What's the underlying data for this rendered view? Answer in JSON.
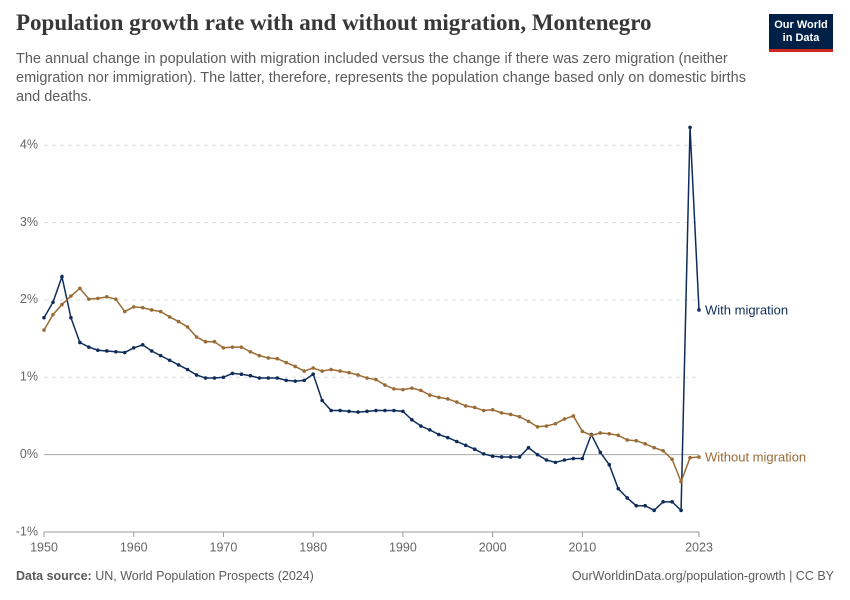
{
  "header": {
    "title": "Population growth rate with and without migration, Montenegro",
    "subtitle": "The annual change in population with migration included versus the change if there was zero migration (neither emigration nor immigration). The latter, therefore, represents the population change based only on domestic births and deaths.",
    "logo": [
      "Our World",
      "in Data"
    ]
  },
  "footer": {
    "source_label": "Data source:",
    "source": "UN, World Population Prospects (2024)",
    "url": "OurWorldinData.org/population-growth | CC BY"
  },
  "chart_data": {
    "type": "line",
    "x": [
      1950,
      1951,
      1952,
      1953,
      1954,
      1955,
      1956,
      1957,
      1958,
      1959,
      1960,
      1961,
      1962,
      1963,
      1964,
      1965,
      1966,
      1967,
      1968,
      1969,
      1970,
      1971,
      1972,
      1973,
      1974,
      1975,
      1976,
      1977,
      1978,
      1979,
      1980,
      1981,
      1982,
      1983,
      1984,
      1985,
      1986,
      1987,
      1988,
      1989,
      1990,
      1991,
      1992,
      1993,
      1994,
      1995,
      1996,
      1997,
      1998,
      1999,
      2000,
      2001,
      2002,
      2003,
      2004,
      2005,
      2006,
      2007,
      2008,
      2009,
      2010,
      2011,
      2012,
      2013,
      2014,
      2015,
      2016,
      2017,
      2018,
      2019,
      2020,
      2021,
      2022,
      2023
    ],
    "series": [
      {
        "name": "With migration",
        "color": "#0f2d5a",
        "values": [
          1.77,
          1.97,
          2.3,
          1.77,
          1.45,
          1.39,
          1.35,
          1.34,
          1.33,
          1.32,
          1.38,
          1.42,
          1.34,
          1.28,
          1.22,
          1.16,
          1.1,
          1.03,
          0.99,
          0.99,
          1.0,
          1.05,
          1.04,
          1.02,
          0.99,
          0.99,
          0.99,
          0.96,
          0.95,
          0.96,
          1.04,
          0.7,
          0.57,
          0.57,
          0.56,
          0.55,
          0.56,
          0.57,
          0.57,
          0.57,
          0.56,
          0.45,
          0.37,
          0.32,
          0.26,
          0.22,
          0.17,
          0.12,
          0.07,
          0.01,
          -0.02,
          -0.03,
          -0.03,
          -0.03,
          0.09,
          0.0,
          -0.07,
          -0.1,
          -0.07,
          -0.05,
          -0.05,
          0.26,
          0.03,
          -0.13,
          -0.44,
          -0.56,
          -0.66,
          -0.66,
          -0.72,
          -0.61,
          -0.61,
          -0.72,
          4.23,
          1.87
        ]
      },
      {
        "name": "Without migration",
        "color": "#9a6b35",
        "values": [
          1.61,
          1.81,
          1.94,
          2.05,
          2.15,
          2.01,
          2.02,
          2.04,
          2.01,
          1.85,
          1.91,
          1.9,
          1.87,
          1.85,
          1.78,
          1.72,
          1.65,
          1.52,
          1.46,
          1.46,
          1.38,
          1.39,
          1.39,
          1.33,
          1.28,
          1.25,
          1.24,
          1.19,
          1.14,
          1.08,
          1.12,
          1.08,
          1.1,
          1.08,
          1.06,
          1.03,
          0.99,
          0.97,
          0.9,
          0.85,
          0.84,
          0.86,
          0.83,
          0.77,
          0.74,
          0.72,
          0.68,
          0.63,
          0.61,
          0.57,
          0.58,
          0.54,
          0.52,
          0.49,
          0.43,
          0.36,
          0.37,
          0.4,
          0.46,
          0.5,
          0.3,
          0.25,
          0.28,
          0.27,
          0.25,
          0.19,
          0.18,
          0.14,
          0.09,
          0.05,
          -0.06,
          -0.35,
          -0.04,
          -0.03
        ]
      }
    ],
    "xlim": [
      1950,
      2023
    ],
    "xticks": [
      1950,
      1960,
      1970,
      1980,
      1990,
      2000,
      2010,
      2023
    ],
    "ylim": [
      -1,
      4.3
    ],
    "yticks": [
      {
        "value": -1,
        "label": "-1%"
      },
      {
        "value": 0,
        "label": "0%"
      },
      {
        "value": 1,
        "label": "1%"
      },
      {
        "value": 2,
        "label": "2%"
      },
      {
        "value": 3,
        "label": "3%"
      },
      {
        "value": 4,
        "label": "4%"
      }
    ],
    "grid": true
  }
}
